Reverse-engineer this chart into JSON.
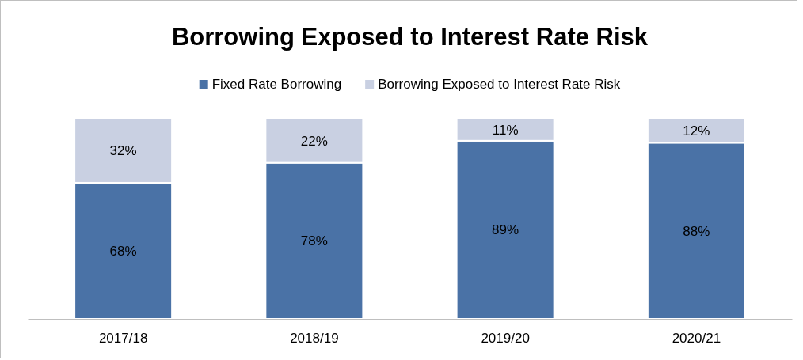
{
  "chart_data": {
    "type": "bar",
    "title": "Borrowing Exposed to Interest Rate Risk",
    "categories": [
      "2017/18",
      "2018/19",
      "2019/20",
      "2020/21"
    ],
    "stacked": true,
    "legend": "top",
    "tick_labels": "x",
    "series": [
      {
        "name": "Fixed Rate Borrowing",
        "color": "#4a72a6",
        "values": [
          68,
          78,
          89,
          88
        ],
        "value_labels": [
          "68%",
          "78%",
          "89%",
          "88%"
        ]
      },
      {
        "name": "Borrowing Exposed to Interest Rate Risk",
        "color": "#c9d0e2",
        "values": [
          32,
          22,
          11,
          12
        ],
        "value_labels": [
          "32%",
          "22%",
          "11%",
          "12%"
        ]
      }
    ]
  }
}
